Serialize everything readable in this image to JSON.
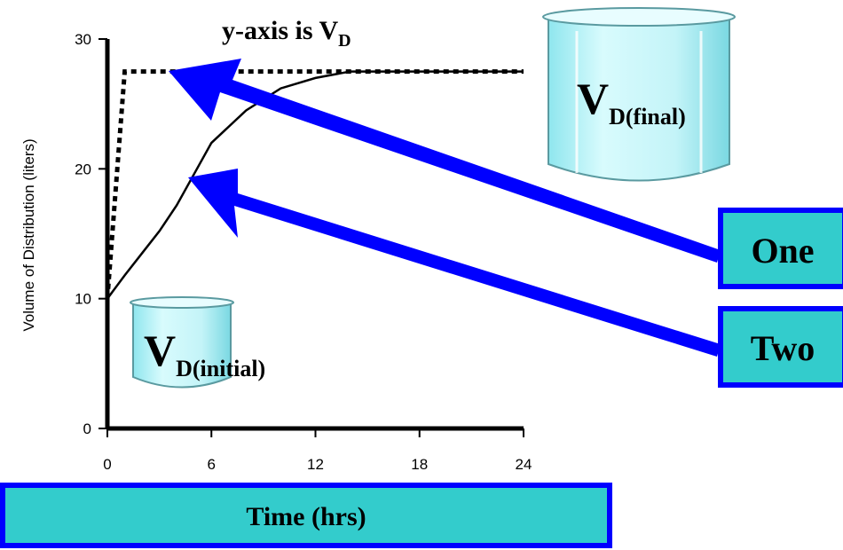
{
  "chart_data": {
    "type": "line",
    "title": "y-axis is V",
    "title_sub": "D",
    "ylabel": "Volume of Distribution (liters)",
    "xlabel": "Time (hrs)",
    "xlim": [
      0,
      24
    ],
    "xticks": [
      0,
      6,
      12,
      18,
      24
    ],
    "ylim": [
      0,
      30
    ],
    "yticks": [
      0,
      10,
      20,
      30
    ],
    "series": [
      {
        "color": "#000000",
        "dash": true,
        "x": [
          0,
          1,
          24
        ],
        "values": [
          10,
          27.5,
          27.5
        ]
      },
      {
        "color": "#000000",
        "dash": false,
        "x": [
          0,
          1,
          2,
          3,
          4,
          5,
          6,
          8,
          10,
          12,
          14,
          24
        ],
        "values": [
          10,
          11.8,
          13.5,
          15.2,
          17.2,
          19.6,
          22,
          24.5,
          26.2,
          27,
          27.5,
          27.5
        ]
      }
    ],
    "final_label": "V",
    "final_sub": "D(final)",
    "initial_label": "V",
    "initial_sub": "D(initial)",
    "one": "One",
    "two": "Two"
  }
}
